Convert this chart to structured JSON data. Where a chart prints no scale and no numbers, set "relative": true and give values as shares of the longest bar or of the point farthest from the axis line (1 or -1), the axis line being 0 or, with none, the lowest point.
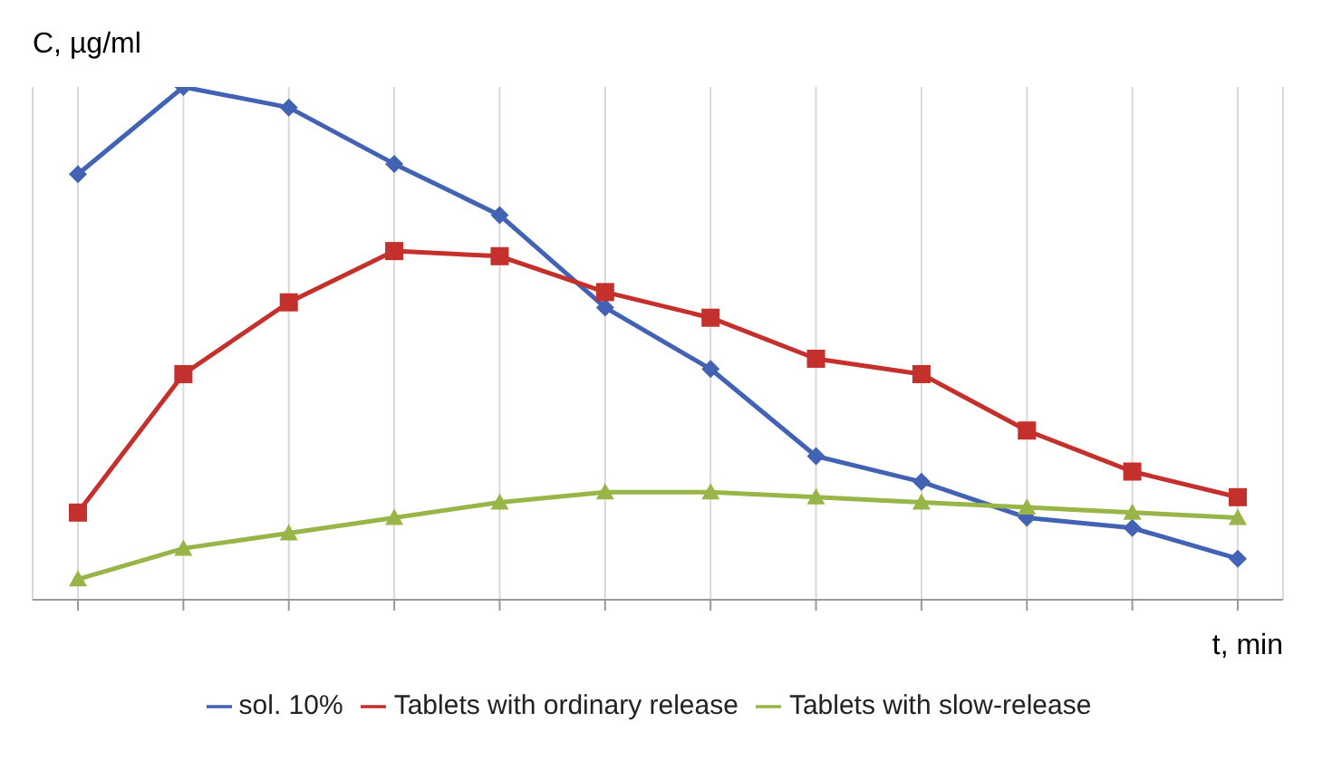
{
  "chart_data": {
    "type": "line",
    "relative": true,
    "ylabel": "C, µg/ml",
    "xlabel": "t, min",
    "categories": [
      null,
      null,
      null,
      null,
      null,
      null,
      null,
      null,
      null,
      null,
      null,
      null
    ],
    "grid": "x",
    "legend": "bottom",
    "series": [
      {
        "name": "sol. 10%",
        "color": "#4262b4",
        "marker": "diamond",
        "values": [
          0.83,
          1,
          0.96,
          0.85,
          0.75,
          0.57,
          0.45,
          0.28,
          0.23,
          0.16,
          0.14,
          0.08
        ]
      },
      {
        "name": "Tablets with ordinary release",
        "color": "#c4302c",
        "marker": "square",
        "values": [
          0.17,
          0.44,
          0.58,
          0.68,
          0.67,
          0.6,
          0.55,
          0.47,
          0.44,
          0.33,
          0.25,
          0.2
        ]
      },
      {
        "name": "Tablets with slow-release",
        "color": "#98b548",
        "marker": "triangle",
        "values": [
          0.04,
          0.1,
          0.13,
          0.16,
          0.19,
          0.21,
          0.21,
          0.2,
          0.19,
          0.18,
          0.17,
          0.16
        ]
      }
    ]
  }
}
